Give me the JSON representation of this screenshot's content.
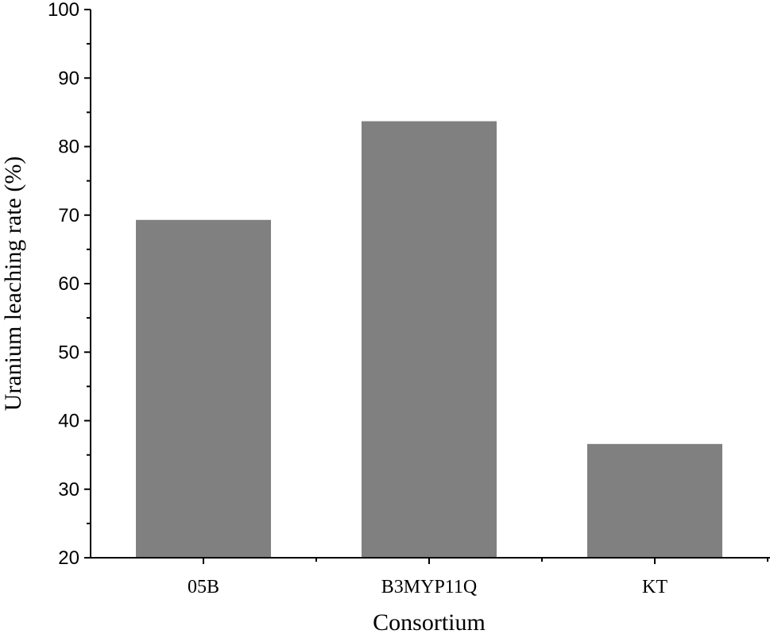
{
  "chart_data": {
    "type": "bar",
    "title": "",
    "xlabel": "Consortium",
    "ylabel": "Uranium leaching rate (%)",
    "categories": [
      "05B",
      "B3MYP11Q",
      "KT"
    ],
    "values": [
      69.3,
      83.7,
      36.6
    ],
    "ylim": [
      20,
      100
    ],
    "yticks": [
      20,
      30,
      40,
      50,
      60,
      70,
      80,
      90,
      100
    ],
    "grid": false,
    "legend": "none",
    "bar_color": "#808080"
  }
}
